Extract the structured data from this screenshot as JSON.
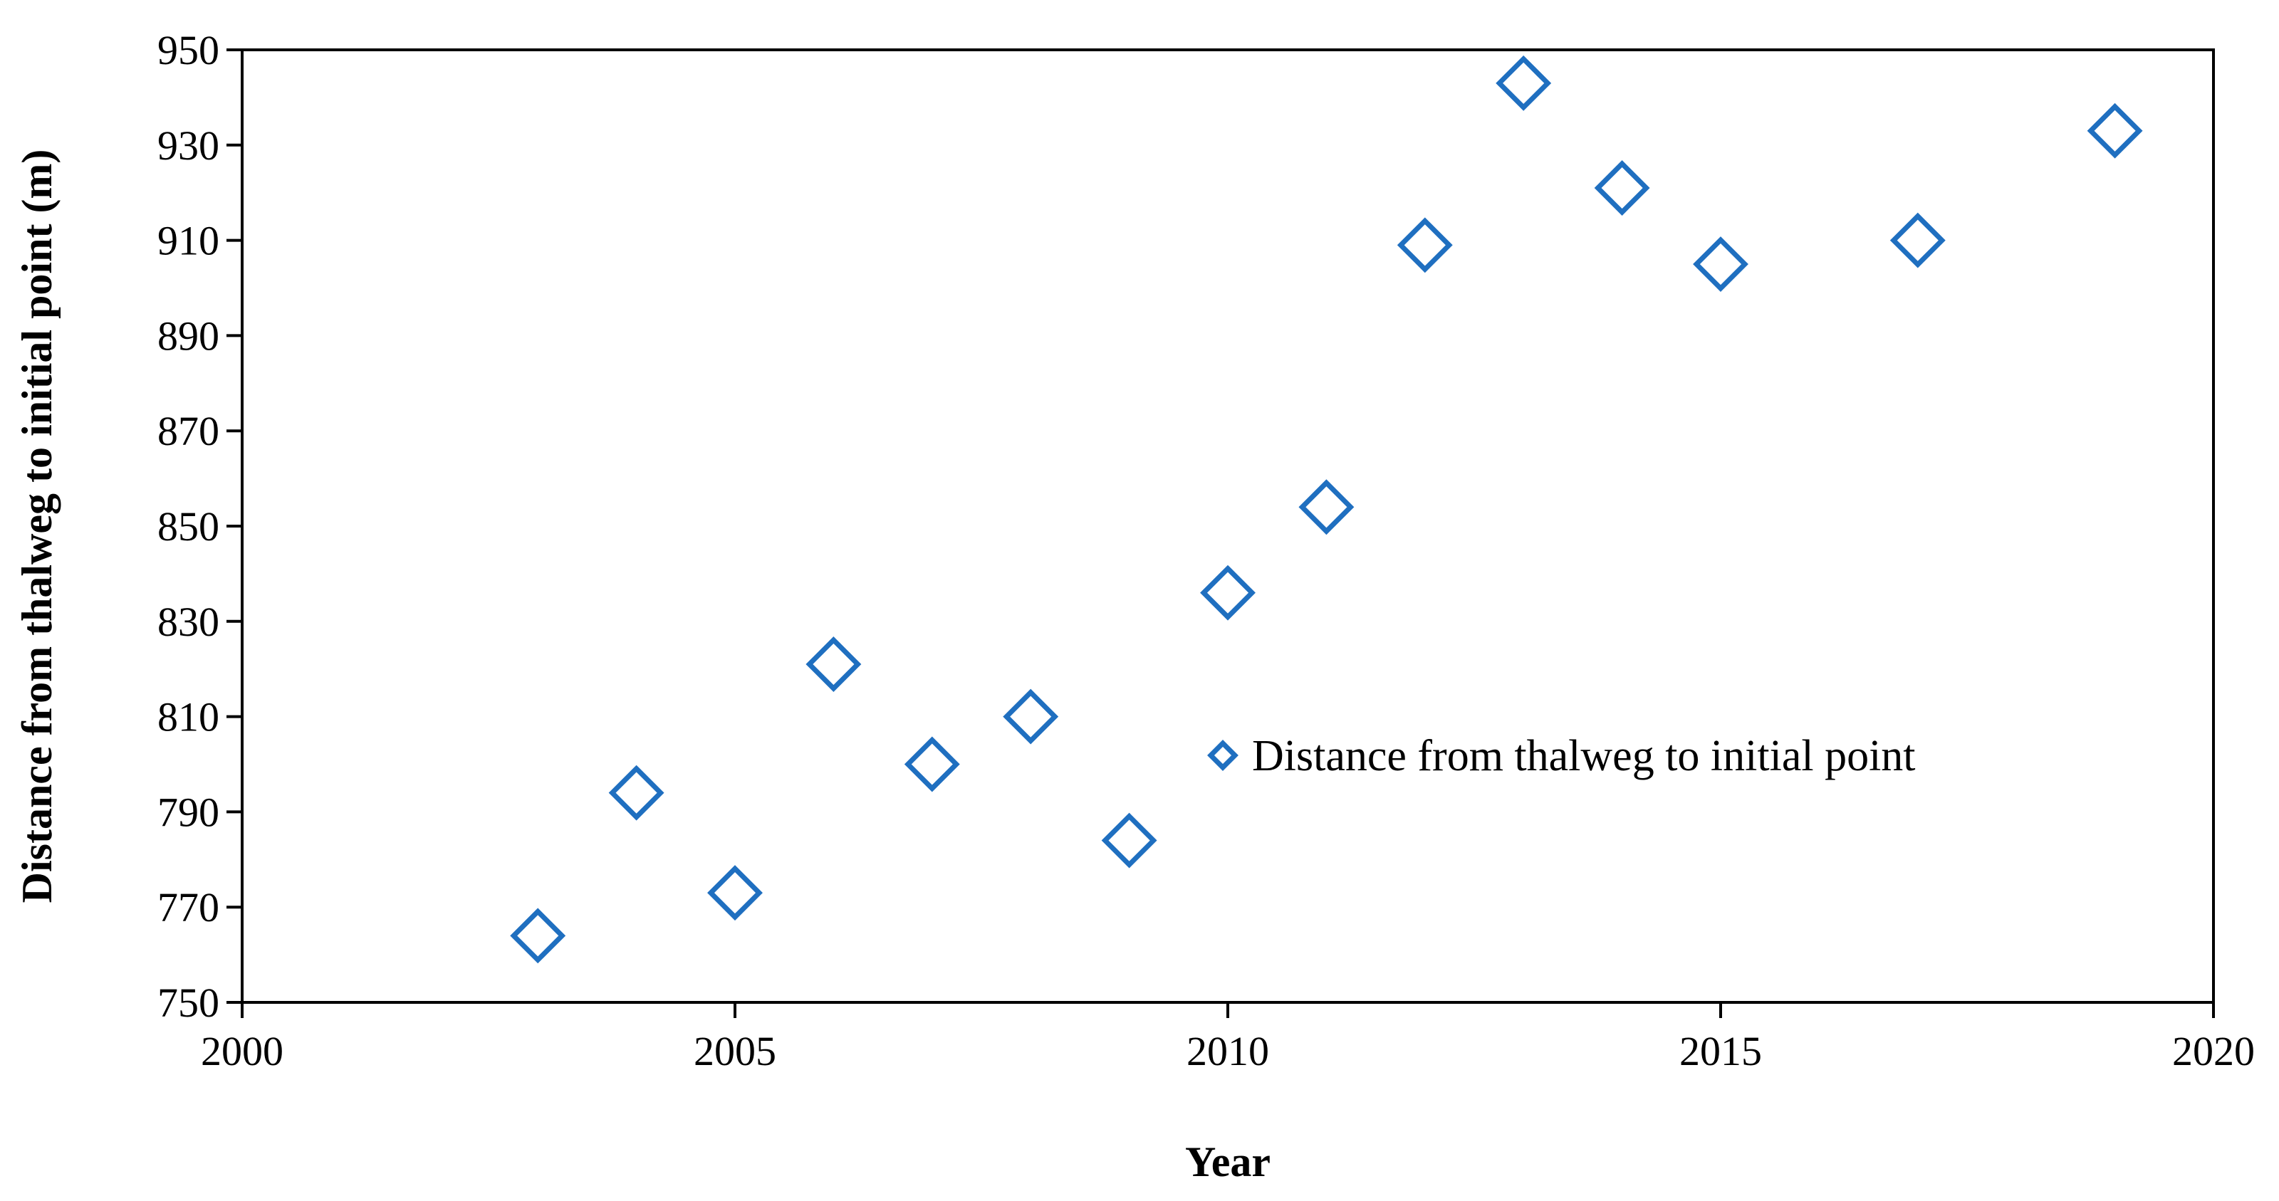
{
  "chart_data": {
    "type": "scatter",
    "title": "",
    "xlabel": "Year",
    "ylabel": "Distance from thalweg to initial point (m)",
    "xlim": [
      2000,
      2020
    ],
    "ylim": [
      750,
      950
    ],
    "xticks": [
      2000,
      2005,
      2010,
      2015,
      2020
    ],
    "yticks": [
      750,
      770,
      790,
      810,
      830,
      850,
      870,
      890,
      910,
      930,
      950
    ],
    "grid": false,
    "legend_position": "right",
    "marker": "diamond-open",
    "marker_color": "#1f6fc0",
    "series": [
      {
        "name": "Distance from thalweg to initial point",
        "x": [
          2003,
          2004,
          2005,
          2006,
          2007,
          2008,
          2009,
          2010,
          2011,
          2012,
          2013,
          2014,
          2015,
          2017,
          2019
        ],
        "y": [
          764,
          794,
          773,
          821,
          800,
          810,
          784,
          836,
          854,
          909,
          943,
          921,
          905,
          910,
          933
        ]
      }
    ]
  }
}
